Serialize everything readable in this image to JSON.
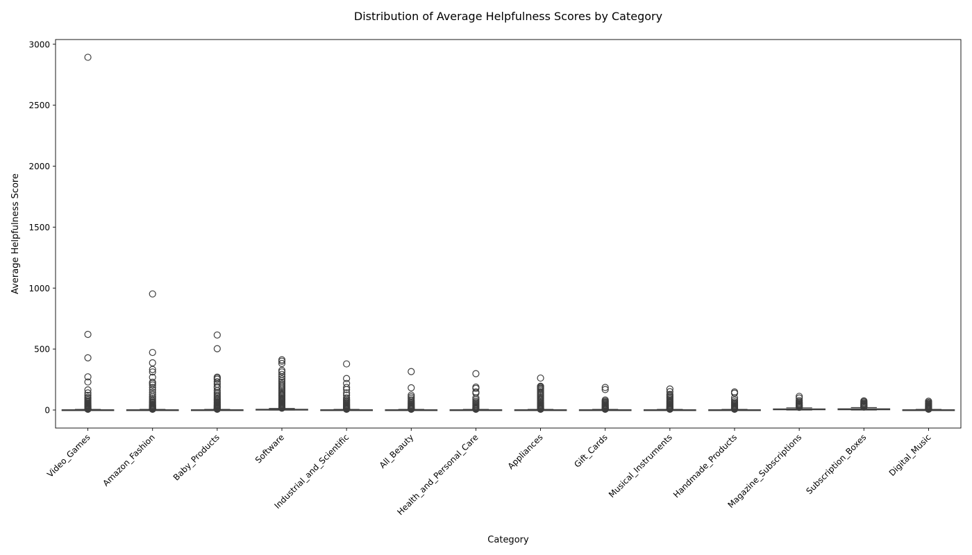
{
  "chart_data": {
    "type": "box",
    "title": "Distribution of Average Helpfulness Scores by Category",
    "xlabel": "Category",
    "ylabel": "Average Helpfulness Score",
    "ylim": [
      -150,
      3050
    ],
    "yticks": [
      0,
      500,
      1000,
      1500,
      2000,
      2500,
      3000
    ],
    "grid": false,
    "categories": [
      "Video_Games",
      "Amazon_Fashion",
      "Baby_Products",
      "Software",
      "Industrial_and_Scientific",
      "All_Beauty",
      "Health_and_Personal_Care",
      "Appliances",
      "Gift_Cards",
      "Musical_Instruments",
      "Handmade_Products",
      "Magazine_Subscriptions",
      "Subscription_Boxes",
      "Digital_Music"
    ],
    "boxes": [
      {
        "category": "Video_Games",
        "q1": 0,
        "median": 1,
        "q3": 2,
        "whisker_low": 0,
        "whisker_high": 5,
        "outliers": [
          2893,
          620,
          428,
          272,
          230,
          165,
          140,
          120,
          105,
          95,
          85,
          75,
          68,
          60,
          54,
          48,
          42,
          37,
          32,
          28,
          24,
          20,
          17,
          14,
          11,
          9,
          7,
          6
        ]
      },
      {
        "category": "Amazon_Fashion",
        "q1": 0,
        "median": 1,
        "q3": 2,
        "whisker_low": 0,
        "whisker_high": 5,
        "outliers": [
          952,
          472,
          387,
          332,
          312,
          268,
          228,
          218,
          205,
          185,
          165,
          145,
          128,
          112,
          98,
          86,
          75,
          66,
          58,
          50,
          43,
          37,
          32,
          27,
          22,
          18,
          14,
          11,
          9,
          7,
          6
        ]
      },
      {
        "category": "Baby_Products",
        "q1": 0,
        "median": 1,
        "q3": 2,
        "whisker_low": 0,
        "whisker_high": 5,
        "outliers": [
          615,
          503,
          270,
          262,
          252,
          232,
          212,
          192,
          182,
          160,
          145,
          132,
          120,
          110,
          100,
          90,
          81,
          73,
          65,
          58,
          51,
          45,
          39,
          34,
          29,
          25,
          21,
          17,
          14,
          11,
          9,
          7,
          6
        ]
      },
      {
        "category": "Software",
        "q1": 1,
        "median": 3,
        "q3": 6,
        "whisker_low": 0,
        "whisker_high": 13,
        "outliers": [
          412,
          400,
          382,
          325,
          312,
          292,
          272,
          255,
          240,
          228,
          215,
          202,
          190,
          178,
          166,
          155,
          144,
          134,
          124,
          115,
          106,
          97,
          89,
          81,
          73,
          66,
          59,
          52,
          46,
          40,
          35,
          30,
          26,
          22,
          18,
          15
        ]
      },
      {
        "category": "Industrial_and_Scientific",
        "q1": 0,
        "median": 1,
        "q3": 2,
        "whisker_low": 0,
        "whisker_high": 5,
        "outliers": [
          378,
          258,
          218,
          185,
          168,
          140,
          122,
          100,
          88,
          78,
          70,
          62,
          55,
          48,
          42,
          36,
          31,
          26,
          22,
          18,
          14,
          11,
          9,
          7,
          6
        ]
      },
      {
        "category": "All_Beauty",
        "q1": 0,
        "median": 1,
        "q3": 2,
        "whisker_low": 0,
        "whisker_high": 5,
        "outliers": [
          315,
          182,
          122,
          108,
          95,
          82,
          72,
          63,
          55,
          47,
          40,
          34,
          28,
          23,
          18,
          14,
          11,
          9,
          7,
          6
        ]
      },
      {
        "category": "Health_and_Personal_Care",
        "q1": 0,
        "median": 1,
        "q3": 2,
        "whisker_low": 0,
        "whisker_high": 5,
        "outliers": [
          298,
          188,
          178,
          148,
          138,
          100,
          86,
          72,
          62,
          53,
          45,
          38,
          31,
          25,
          20,
          16,
          12,
          9,
          7,
          6
        ]
      },
      {
        "category": "Appliances",
        "q1": 0,
        "median": 1,
        "q3": 2,
        "whisker_low": 0,
        "whisker_high": 5,
        "outliers": [
          262,
          195,
          188,
          180,
          172,
          162,
          150,
          138,
          126,
          115,
          104,
          94,
          85,
          76,
          68,
          60,
          53,
          46,
          40,
          34,
          29,
          24,
          19,
          15,
          12,
          9,
          7,
          6
        ]
      },
      {
        "category": "Gift_Cards",
        "q1": 0,
        "median": 1,
        "q3": 2,
        "whisker_low": 0,
        "whisker_high": 5,
        "outliers": [
          185,
          168,
          82,
          72,
          64,
          56,
          49,
          42,
          36,
          30,
          25,
          20,
          16,
          12,
          9,
          7,
          6
        ]
      },
      {
        "category": "Musical_Instruments",
        "q1": 0,
        "median": 1,
        "q3": 2,
        "whisker_low": 0,
        "whisker_high": 5,
        "outliers": [
          172,
          150,
          128,
          118,
          108,
          98,
          89,
          80,
          72,
          64,
          57,
          50,
          43,
          37,
          31,
          26,
          21,
          17,
          13,
          10,
          8,
          6
        ]
      },
      {
        "category": "Handmade_Products",
        "q1": 0,
        "median": 1,
        "q3": 2,
        "whisker_low": 0,
        "whisker_high": 5,
        "outliers": [
          148,
          138,
          100,
          82,
          68,
          58,
          50,
          43,
          36,
          30,
          25,
          20,
          16,
          12,
          9,
          7,
          6
        ]
      },
      {
        "category": "Magazine_Subscriptions",
        "q1": 2,
        "median": 5,
        "q3": 9,
        "whisker_low": 0,
        "whisker_high": 18,
        "outliers": [
          112,
          98,
          78,
          68,
          60,
          53,
          46,
          40,
          35,
          30,
          26,
          22
        ]
      },
      {
        "category": "Subscription_Boxes",
        "q1": 2,
        "median": 5,
        "q3": 10,
        "whisker_low": 0,
        "whisker_high": 20,
        "outliers": [
          75,
          68,
          60,
          53,
          47,
          41,
          36,
          31,
          27,
          24
        ]
      },
      {
        "category": "Digital_Music",
        "q1": 0,
        "median": 1,
        "q3": 2,
        "whisker_low": 0,
        "whisker_high": 5,
        "outliers": [
          72,
          62,
          54,
          47,
          41,
          35,
          30,
          25,
          21,
          17,
          14,
          11,
          8,
          6
        ]
      }
    ],
    "colors": {
      "box_fill": "#3a76af",
      "line": "#3d3d3d",
      "axis": "#000000",
      "background": "#ffffff"
    }
  }
}
